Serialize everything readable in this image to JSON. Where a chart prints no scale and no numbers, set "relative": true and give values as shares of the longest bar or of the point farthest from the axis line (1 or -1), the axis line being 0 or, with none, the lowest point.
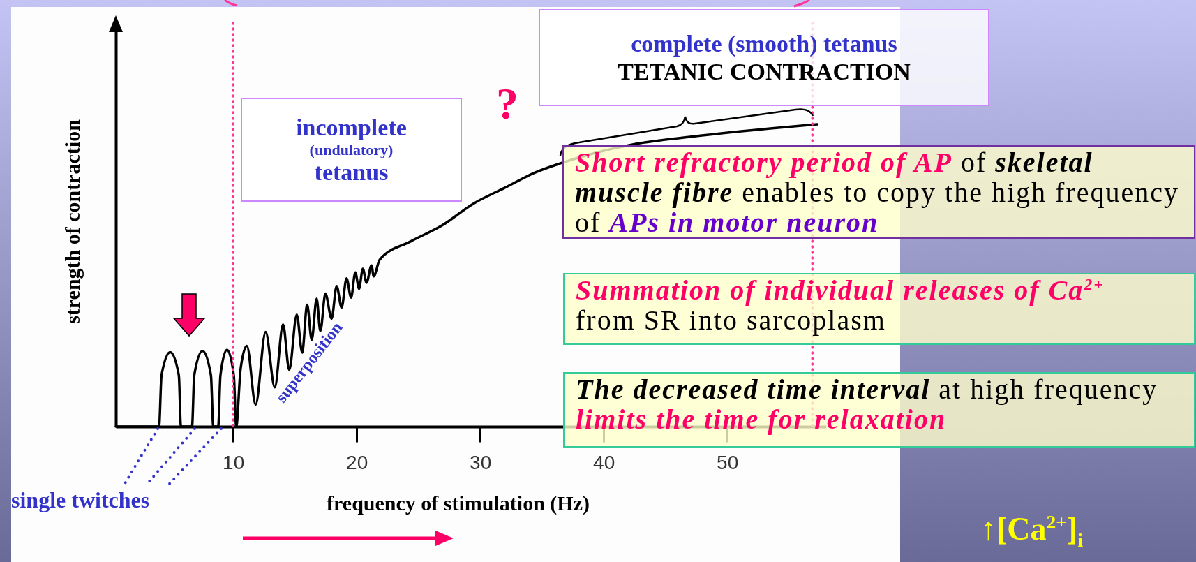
{
  "chart_data": {
    "type": "line",
    "relative": true,
    "xlabel": "frequency of stimulation (Hz)",
    "ylabel": "strength of contraction",
    "x": [
      0.5,
      4.0,
      4.2,
      4.9,
      5.6,
      5.77,
      6.67,
      6.85,
      7.52,
      8.2,
      8.39,
      8.79,
      8.97,
      9.5,
      10.05,
      10.25,
      10.6,
      11.11,
      11.82,
      12.63,
      13.37,
      14.04,
      14.54,
      15.15,
      15.59,
      15.99,
      16.36,
      16.76,
      17.06,
      17.47,
      17.97,
      18.38,
      18.78,
      19.18,
      19.55,
      19.89,
      20.19,
      20.5,
      20.8,
      21.2,
      21.38,
      21.86,
      24.39,
      26.9,
      29.43,
      31.95,
      34.48,
      36.5,
      42.55,
      47.1,
      57.3
    ],
    "series": [
      {
        "color": "#000000",
        "values": [
          0,
          0,
          0.17,
          0.246,
          0.17,
          0,
          0,
          0.17,
          0.25,
          0.17,
          0,
          0,
          0.17,
          0.254,
          0.17,
          0,
          0.19,
          0.267,
          0.073,
          0.313,
          0.13,
          0.338,
          0.188,
          0.37,
          0.245,
          0.403,
          0.287,
          0.423,
          0.316,
          0.44,
          0.357,
          0.465,
          0.394,
          0.49,
          0.427,
          0.51,
          0.456,
          0.522,
          0.476,
          0.533,
          0.497,
          0.552,
          0.613,
          0.665,
          0.737,
          0.789,
          0.841,
          0.871,
          0.935,
          0.959,
          1.0
        ]
      }
    ],
    "xlim": [
      0.5,
      58
    ],
    "xticks": [
      10,
      20,
      30,
      40,
      50
    ],
    "ref_lines": [
      {
        "axis": "x",
        "value": 10,
        "color": "#ff3399",
        "line_style": "dotted"
      },
      {
        "axis": "x",
        "value": 56.9,
        "color": "#ff3399",
        "line_style": "dotted"
      }
    ],
    "grid": false,
    "legend": false,
    "marker": "none",
    "line_style": "solid",
    "tick_labels": "x",
    "annotations": [
      "incomplete",
      "(undulatory)",
      "tetanus",
      "complete (smooth) tetanus",
      "TETANIC CONTRACTION",
      "?",
      "Short refractory period of AP",
      "of",
      "skeletal muscle fibre",
      "enables to copy the high frequency of",
      "APs in motor neuron",
      "Summation of individual releases of Ca$^{2+}$",
      "from SR into sarcoplasm",
      "The decreased time interval",
      "at high frequency",
      "limits the time for relaxation",
      "superposition",
      "single twitches",
      "↑[Ca$^{2+}$]$_{i}$"
    ]
  }
}
